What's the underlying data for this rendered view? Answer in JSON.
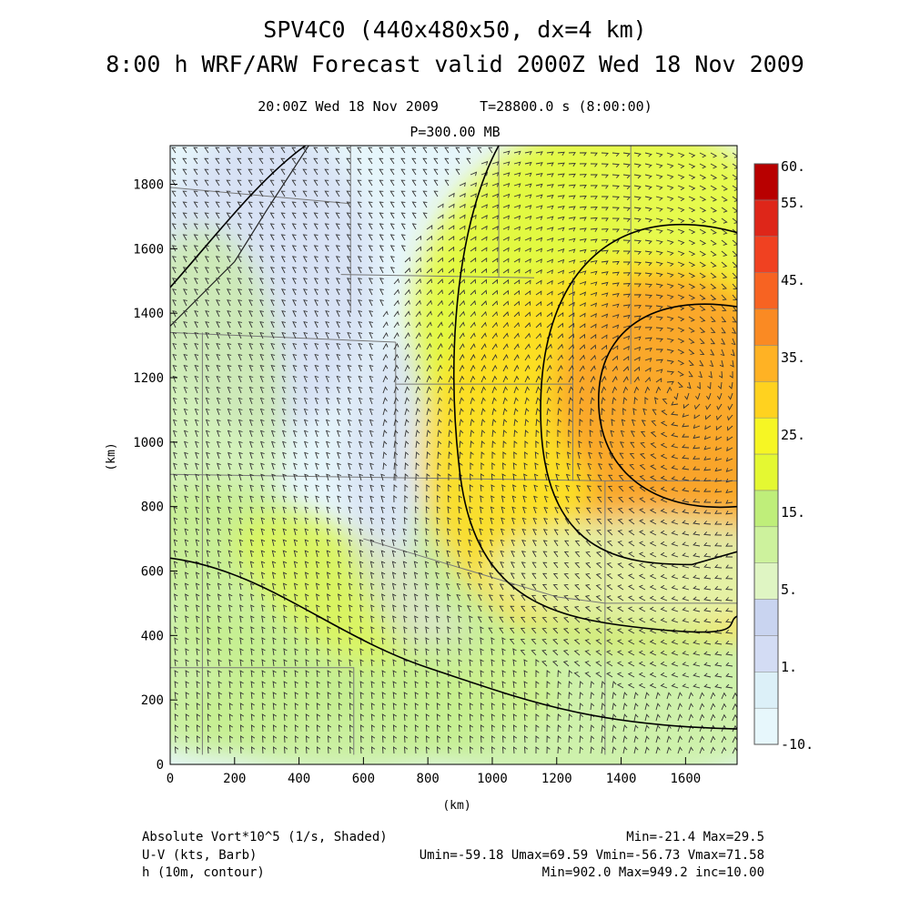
{
  "title": "SPV4C0 (440x480x50, dx=4 km)",
  "subtitle": "8:00 h WRF/ARW Forecast valid 2000Z Wed 18 Nov 2009",
  "valid_time": "20:00Z Wed 18 Nov 2009",
  "model_time": "T=28800.0 s (8:00:00)",
  "pressure_level": "P=300.00 MB",
  "footer": {
    "shaded_label": "Absolute Vort*10^5 (1/s, Shaded)",
    "shaded_stats": "Min=-21.4 Max=29.5",
    "barb_label": "U-V (kts, Barb)",
    "barb_stats": "Umin=-59.18 Umax=69.59 Vmin=-56.73 Vmax=71.58",
    "contour_label": "h (10m, contour)",
    "contour_stats": "Min=902.0 Max=949.2 inc=10.00"
  },
  "colors": {
    "c_low": "#e6f6fb",
    "c_lav": "#d2daf2",
    "c_pale_green": "#dff5c0",
    "c_green": "#c6ef90",
    "c_yellow_green": "#e6fa30",
    "c_yellow": "#ffdd22",
    "c_orange": "#f9a22a",
    "c_red": "#e6362a",
    "c_dark_red": "#b00000"
  },
  "chart_data": {
    "type": "heatmap",
    "xlabel": "(km)",
    "ylabel": "(km)",
    "xlim": [
      0,
      1760
    ],
    "ylim": [
      0,
      1920
    ],
    "xticks": [
      0,
      200,
      400,
      600,
      800,
      1000,
      1200,
      1400,
      1600
    ],
    "yticks": [
      0,
      200,
      400,
      600,
      800,
      1000,
      1200,
      1400,
      1600,
      1800
    ],
    "colorbar": {
      "tick_labels": [
        "60.",
        "55.",
        "45.",
        "35.",
        "25.",
        "15.",
        "5.",
        "1.",
        "-10."
      ],
      "levels": [
        -10,
        -5,
        0,
        1,
        3,
        5,
        10,
        15,
        20,
        25,
        30,
        35,
        40,
        45,
        50,
        55,
        60
      ],
      "colors": [
        "#e7f7fc",
        "#dcf0f8",
        "#d3dcf4",
        "#c9d4f0",
        "#dff5c3",
        "#cdf29d",
        "#bfee7a",
        "#e4f832",
        "#f6f624",
        "#ffd21f",
        "#ffb224",
        "#fa8a23",
        "#f76322",
        "#f04121",
        "#de2619",
        "#b80000"
      ]
    },
    "vorticity_centers": [
      {
        "x": 1560,
        "y": 1150,
        "value": 29.5
      },
      {
        "x": 1620,
        "y": 800,
        "value": 28
      }
    ],
    "height_contours_dam": [
      910,
      920,
      930,
      940
    ]
  }
}
